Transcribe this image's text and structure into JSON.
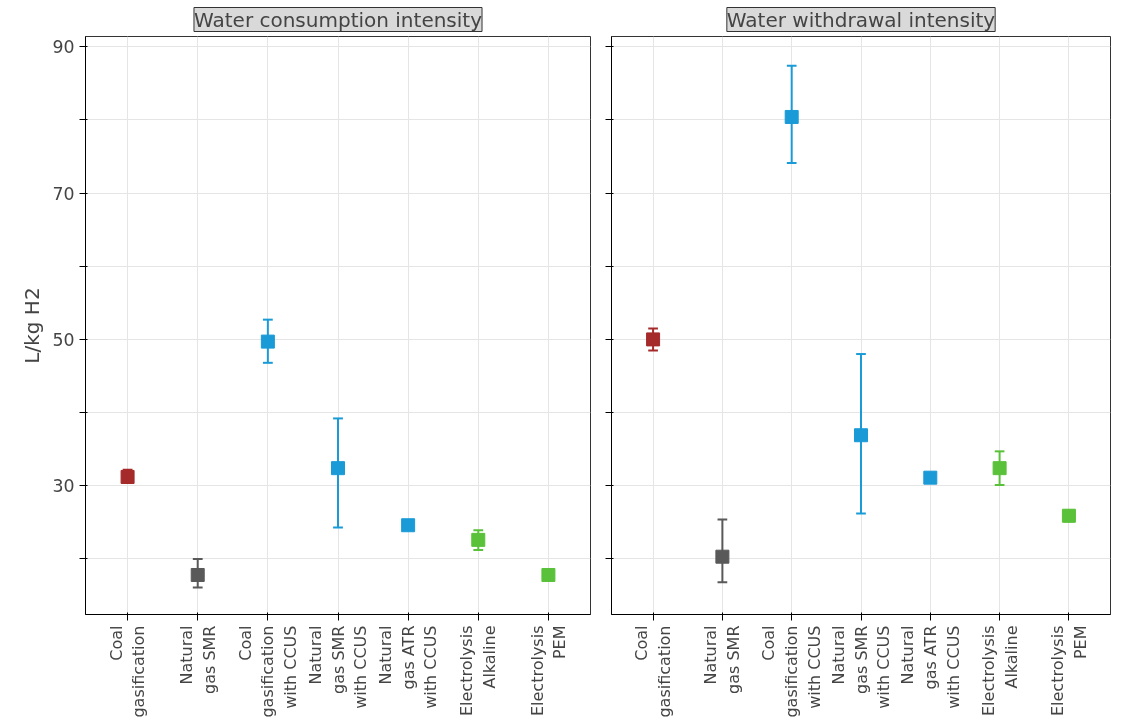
{
  "chart_data": [
    {
      "type": "scatter",
      "title": "Water consumption intensity",
      "ylabel": "L/kg H2",
      "categories": [
        "Coal\ngasification",
        "Natural\ngas SMR",
        "Coal\ngasification\nwith CCUS",
        "Natural\ngas SMR\nwith CCUS",
        "Natural\ngas ATR\nwith CCUS",
        "Electrolysis\nAlkaline",
        "Electrolysis\nPEM"
      ],
      "values": [
        31.2,
        17.8,
        49.7,
        32.4,
        24.6,
        22.6,
        17.8
      ],
      "errors": [
        [
          30.4,
          32.2
        ],
        [
          16.1,
          20.0
        ],
        [
          46.8,
          52.7
        ],
        [
          24.3,
          39.2
        ],
        null,
        [
          21.2,
          23.9
        ],
        null
      ],
      "colors": [
        "#a52a2a",
        "#595959",
        "#1a9bd7",
        "#1a9bd7",
        "#1a9bd7",
        "#5ac13a",
        "#5ac13a"
      ],
      "ylim": [
        12.4,
        91.4
      ],
      "yticks": [
        {
          "value": 20,
          "label": null
        },
        30,
        {
          "value": 40,
          "label": null
        },
        50,
        {
          "value": 60,
          "label": null
        },
        70,
        {
          "value": 80,
          "label": null
        },
        90
      ],
      "grid": true,
      "marker": "square"
    },
    {
      "type": "scatter",
      "title": "Water withdrawal intensity",
      "categories": [
        "Coal\ngasification",
        "Natural\ngas SMR",
        "Coal\ngasification\nwith CCUS",
        "Natural\ngas SMR\nwith CCUS",
        "Natural\ngas ATR\nwith CCUS",
        "Electrolysis\nAlkaline",
        "Electrolysis\nPEM"
      ],
      "values": [
        50.0,
        20.3,
        80.4,
        36.9,
        31.1,
        32.4,
        25.9
      ],
      "errors": [
        [
          48.5,
          51.5
        ],
        [
          16.8,
          25.4
        ],
        [
          74.1,
          87.4
        ],
        [
          26.2,
          48.0
        ],
        null,
        [
          30.1,
          34.7
        ],
        [
          25.1,
          26.6
        ]
      ],
      "colors": [
        "#a52a2a",
        "#595959",
        "#1a9bd7",
        "#1a9bd7",
        "#1a9bd7",
        "#5ac13a",
        "#5ac13a"
      ],
      "ylim": [
        12.4,
        91.4
      ],
      "yticks": [
        {
          "value": 20,
          "label": null
        },
        30,
        {
          "value": 40,
          "label": null
        },
        50,
        {
          "value": 60,
          "label": null
        },
        70,
        {
          "value": 80,
          "label": null
        },
        90
      ],
      "grid": true,
      "marker": "square",
      "tick_labels": "x"
    }
  ]
}
